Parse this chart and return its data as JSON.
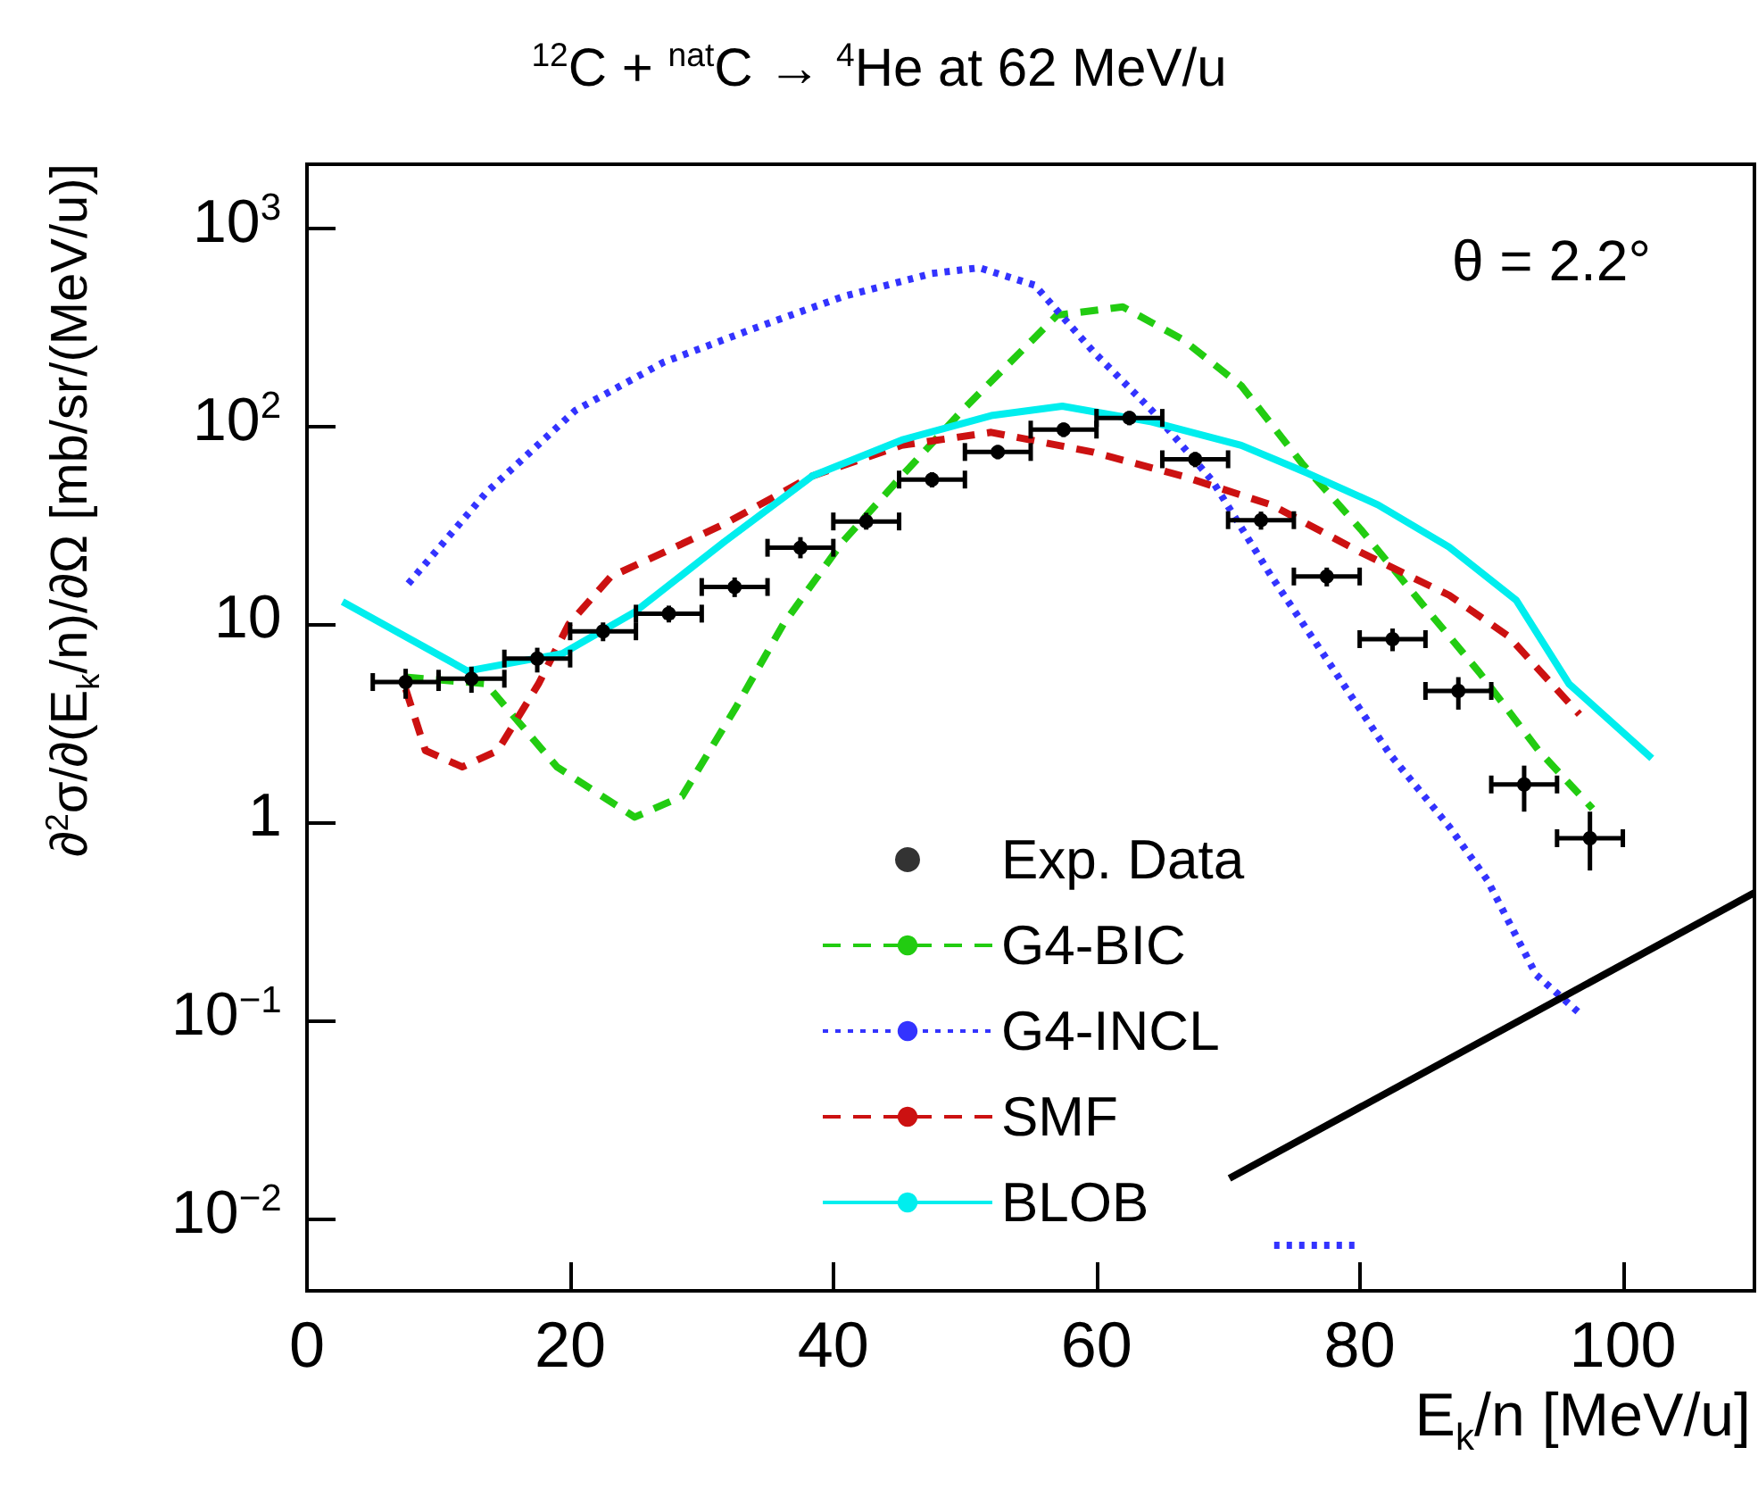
{
  "chart_data": {
    "type": "line",
    "title": "$^{12}$C + $^{nat}$C → $^{4}$He at 62 MeV/u",
    "xlabel": "E$_{k}$/n  [MeV/u]",
    "ylabel": "∂$^{2}$σ/∂(E$_{k}$/n)/∂Ω  [mb/sr/(MeV/u)]",
    "annotations": [
      "θ = 2.2°"
    ],
    "log": "y",
    "grid": false,
    "legend": "bottom",
    "xlim": [
      0,
      110
    ],
    "xticks": [
      0,
      20,
      40,
      60,
      80,
      100
    ],
    "ylim": [
      0.0043,
      2100
    ],
    "yticks": [
      {
        "value": 0.01,
        "label": "10$^{−2}$"
      },
      {
        "value": 0.1,
        "label": "10$^{−1}$"
      },
      1,
      10,
      {
        "value": 100,
        "label": "10$^{2}$"
      },
      {
        "value": 1000,
        "label": "10$^{3}$"
      }
    ],
    "series": [
      {
        "name": "Exp. Data",
        "type": "scatter",
        "marker": "circle",
        "color": "#000000",
        "x": [
          7.5,
          12.5,
          17.5,
          22.5,
          27.5,
          32.5,
          37.5,
          42.5,
          47.5,
          52.5,
          57.5,
          62.5,
          67.5,
          72.5,
          77.5,
          82.5,
          87.5,
          92.5,
          97.5
        ],
        "values": [
          5.1,
          5.3,
          6.7,
          9.2,
          11.3,
          15.4,
          24.3,
          33,
          53.7,
          74,
          96,
          110,
          68,
          33.5,
          17.4,
          8.4,
          4.6,
          1.55,
          0.83
        ],
        "errors": [
          [
            4.2,
            5.95
          ],
          [
            4.5,
            6.1
          ],
          [
            5.7,
            7.6
          ],
          [
            8.2,
            10.2
          ],
          [
            10.2,
            12.4
          ],
          [
            13.7,
            17.2
          ],
          [
            21.5,
            27.5
          ],
          [
            30,
            36.5
          ],
          [
            49,
            58.5
          ],
          [
            68,
            80
          ],
          [
            88,
            104
          ],
          [
            101,
            119
          ],
          [
            62,
            74
          ],
          [
            30,
            37
          ],
          [
            15.5,
            19.3
          ],
          [
            7.3,
            9.5
          ],
          [
            3.7,
            5.4
          ],
          [
            1.13,
            1.93
          ],
          [
            0.57,
            1.13
          ]
        ],
        "xerrors": [
          2.5,
          2.5,
          2.5,
          2.5,
          2.5,
          2.5,
          2.5,
          2.5,
          2.5,
          2.5,
          2.5,
          2.5,
          2.5,
          2.5,
          2.5,
          2.5,
          2.5,
          2.5,
          2.5
        ]
      },
      {
        "name": "G4-BIC",
        "color": "#22cc11",
        "line_style": "dashed",
        "x": [
          7.5,
          13.6,
          19,
          24.9,
          28.5,
          32.6,
          36.2,
          40.7,
          45.2,
          49.8,
          57,
          62,
          66.5,
          71,
          75.6,
          80.1,
          84.6,
          89.1,
          93.6,
          97.7
        ],
        "values": [
          5.4,
          5,
          1.9,
          1.06,
          1.35,
          3.8,
          10,
          26,
          56,
          120,
          363,
          400,
          275,
          160,
          65,
          30,
          13,
          5.7,
          2.3,
          1.17
        ]
      },
      {
        "name": "G4-INCL",
        "color": "#3333ff",
        "line_style": "dotted",
        "x": [
          7.7,
          13.6,
          20.4,
          27.1,
          33.9,
          40.7,
          47.5,
          51.1,
          55.3,
          59.7,
          64.2,
          68.8,
          73.3,
          77.8,
          82.3,
          86.8,
          89.7,
          93.4,
          96.6
        ],
        "values": [
          16,
          46,
          120,
          210,
          310,
          450,
          590,
          630,
          515,
          240,
          120,
          53,
          17.4,
          6.2,
          2.2,
          0.95,
          0.51,
          0.17,
          0.11
        ]
      },
      {
        "name": "SMF",
        "color": "#cc1111",
        "line_style": "dashed",
        "x": [
          7.5,
          9,
          11.8,
          14.5,
          17.6,
          19.9,
          23.1,
          27.1,
          31.7,
          38.4,
          45.2,
          52,
          59.7,
          66.5,
          73.3,
          80.1,
          86.8,
          91.3,
          96.7
        ],
        "values": [
          4.7,
          2.3,
          1.9,
          2.3,
          5,
          10,
          17.4,
          23,
          32,
          56,
          80,
          93,
          74,
          56,
          40,
          23,
          14,
          8.7,
          3.5
        ]
      },
      {
        "name": "BLOB",
        "color": "#00eeee",
        "line_style": "solid",
        "x": [
          2.7,
          12.2,
          19.4,
          24.9,
          31.7,
          38.4,
          45.2,
          52,
          57.4,
          64.2,
          71,
          76,
          81.4,
          86.8,
          91.9,
          95.9,
          102.2
        ],
        "values": [
          13,
          5.8,
          7.1,
          11.5,
          26,
          56,
          85,
          113,
          126,
          105,
          80,
          58,
          40,
          24.5,
          13.2,
          5,
          2.1
        ]
      },
      {
        "color": "#000000",
        "line_style": "solid",
        "x": [
          70.1,
          110
        ],
        "values": [
          0.0159,
          0.44
        ]
      },
      {
        "color": "#3333ff",
        "line_style": "dotted",
        "x": [
          73.5,
          80
        ],
        "values": [
          0.0073,
          0.0073
        ]
      }
    ]
  }
}
